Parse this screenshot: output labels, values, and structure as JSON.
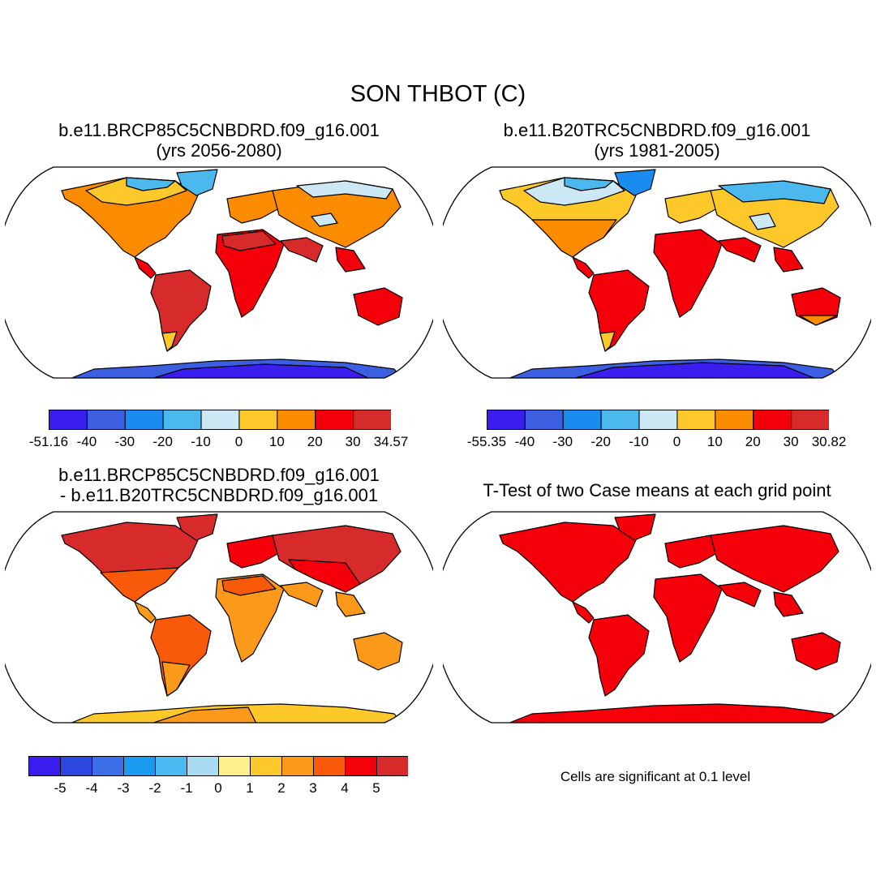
{
  "figure": {
    "title": "SON THBOT (C)"
  },
  "panels": [
    {
      "title_line1": "b.e11.BRCP85C5CNBDRD.f09_g16.001",
      "title_line2": "(yrs 2056-2080)",
      "colorbar": {
        "colors": [
          "#3a1ef0",
          "#3b5fe0",
          "#1a8cf0",
          "#4bb8ee",
          "#cde8f5",
          "#fdc92a",
          "#fb8c00",
          "#f5000a",
          "#d72a2a"
        ],
        "tick_labels": [
          "-51.16",
          "-40",
          "-30",
          "-20",
          "-10",
          "0",
          "10",
          "20",
          "30",
          "34.57"
        ]
      }
    },
    {
      "title_line1": "b.e11.B20TRC5CNBDRD.f09_g16.001",
      "title_line2": "(yrs 1981-2005)",
      "colorbar": {
        "colors": [
          "#3a1ef0",
          "#3b5fe0",
          "#1a8cf0",
          "#4bb8ee",
          "#cde8f5",
          "#fdc92a",
          "#fb8c00",
          "#f5000a",
          "#d72a2a"
        ],
        "tick_labels": [
          "-55.35",
          "-40",
          "-30",
          "-20",
          "-10",
          "0",
          "10",
          "20",
          "30",
          "30.82"
        ]
      }
    },
    {
      "title_line1": "b.e11.BRCP85C5CNBDRD.f09_g16.001",
      "title_line2": "- b.e11.B20TRC5CNBDRD.f09_g16.001",
      "colorbar": {
        "colors": [
          "#3a1ef0",
          "#2d48e0",
          "#3b6fe8",
          "#1a99f0",
          "#4bbaf0",
          "#a9dbf2",
          "#fdf08c",
          "#fdc92a",
          "#fb9a1a",
          "#f85a0a",
          "#f5000a",
          "#d72a2a"
        ],
        "tick_labels": [
          "-5",
          "-4",
          "-3",
          "-2",
          "-1",
          "0",
          "1",
          "2",
          "3",
          "4",
          "5"
        ]
      }
    },
    {
      "title_line1": "T-Test of two Case means at each grid point",
      "note": "Cells are significant at 0.1 level"
    }
  ]
}
